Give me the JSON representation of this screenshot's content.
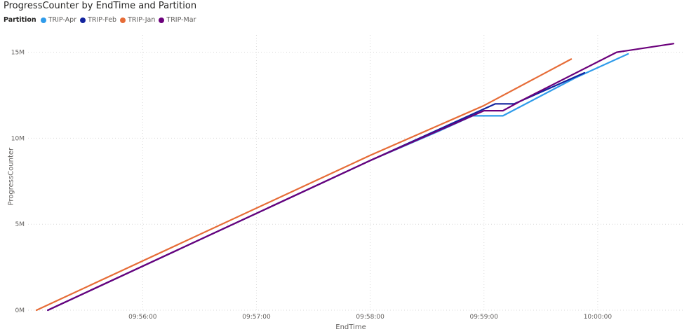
{
  "chart_data": {
    "type": "line",
    "title": "ProgressCounter by EndTime and Partition",
    "legend_title": "Partition",
    "legend_position": "top-left",
    "xlabel": "EndTime",
    "ylabel": "ProgressCounter",
    "grid": true,
    "x_ticks": [
      "09:56:00",
      "09:57:00",
      "09:58:00",
      "09:59:00",
      "10:00:00"
    ],
    "y_ticks": [
      "0M",
      "5M",
      "10M",
      "15M"
    ],
    "xlim": [
      "09:55:04",
      "10:00:40"
    ],
    "ylim": [
      0,
      16000000
    ],
    "series": [
      {
        "name": "TRIP-Apr",
        "color": "#2f9bea",
        "points": [
          [
            "09:55:10",
            0
          ],
          [
            "09:58:00",
            8700000
          ],
          [
            "09:58:36",
            10400000
          ],
          [
            "09:58:54",
            11300000
          ],
          [
            "09:59:10",
            11300000
          ],
          [
            "09:59:48",
            13500000
          ],
          [
            "10:00:16",
            14900000
          ]
        ]
      },
      {
        "name": "TRIP-Feb",
        "color": "#12239e",
        "points": [
          [
            "09:55:10",
            0
          ],
          [
            "09:58:00",
            8700000
          ],
          [
            "09:58:54",
            11400000
          ],
          [
            "09:59:06",
            12000000
          ],
          [
            "09:59:16",
            12000000
          ],
          [
            "09:59:53",
            13800000
          ]
        ]
      },
      {
        "name": "TRIP-Jan",
        "color": "#e66c37",
        "points": [
          [
            "09:55:04",
            0
          ],
          [
            "09:58:00",
            9000000
          ],
          [
            "09:59:00",
            11900000
          ],
          [
            "09:59:46",
            14600000
          ]
        ]
      },
      {
        "name": "TRIP-Mar",
        "color": "#6b007b",
        "points": [
          [
            "09:55:10",
            0
          ],
          [
            "09:58:00",
            8700000
          ],
          [
            "09:59:00",
            11600000
          ],
          [
            "09:59:10",
            11600000
          ],
          [
            "09:59:20",
            12200000
          ],
          [
            "10:00:10",
            15000000
          ],
          [
            "10:00:40",
            15500000
          ]
        ]
      }
    ]
  }
}
